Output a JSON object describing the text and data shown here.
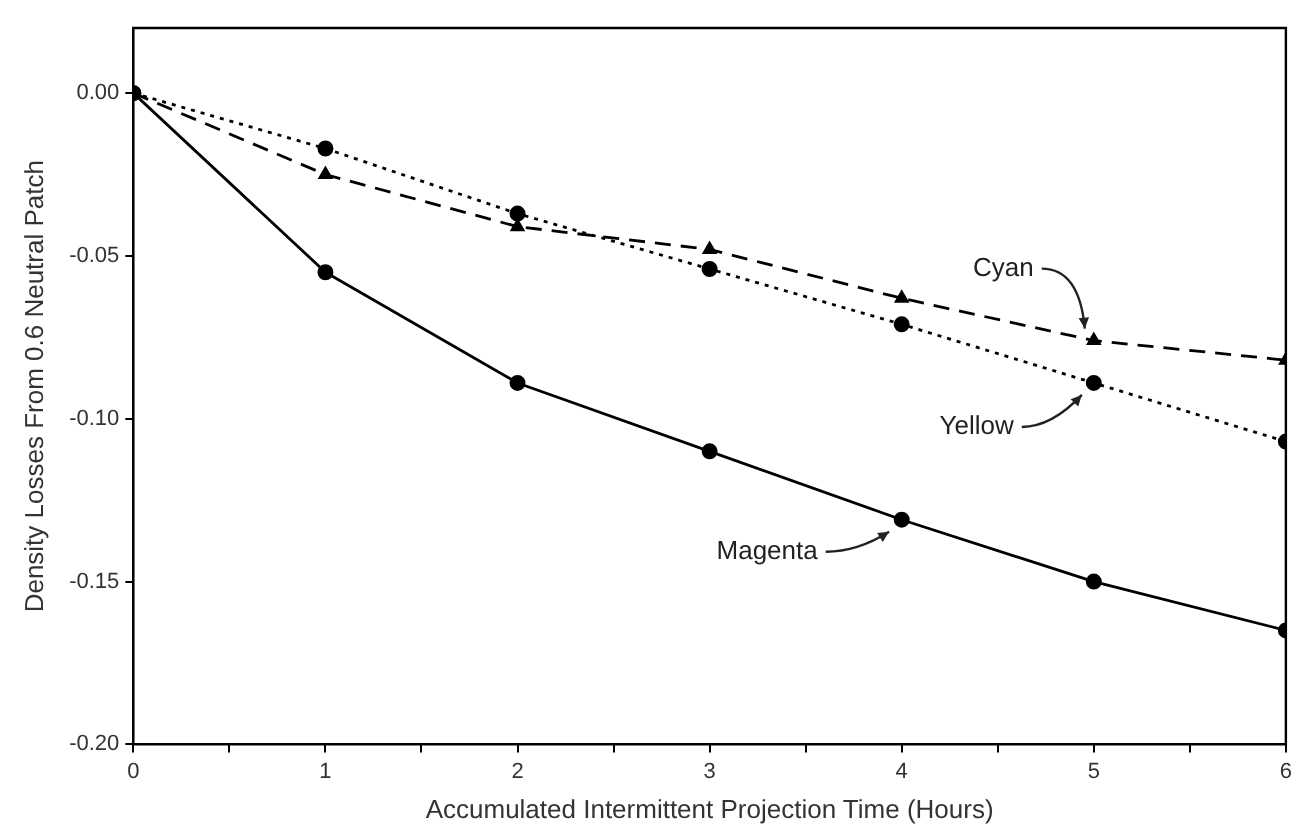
{
  "chart_data": {
    "type": "line",
    "xlabel": "Accumulated Intermittent Projection Time (Hours)",
    "ylabel": "Density Losses From 0.6 Neutral Patch",
    "x": [
      0,
      1,
      2,
      3,
      4,
      5,
      6
    ],
    "series": [
      {
        "name": "Cyan",
        "color": "#000000",
        "marker": "triangle",
        "line_style": "dashed",
        "values": [
          0,
          -0.025,
          -0.041,
          -0.048,
          -0.063,
          -0.076,
          -0.082
        ]
      },
      {
        "name": "Yellow",
        "color": "#000000",
        "marker": "circle",
        "line_style": "dotted",
        "values": [
          0,
          -0.017,
          -0.037,
          -0.054,
          -0.071,
          -0.089,
          -0.107
        ]
      },
      {
        "name": "Magenta",
        "color": "#000000",
        "marker": "circle",
        "line_style": "solid",
        "values": [
          0,
          -0.055,
          -0.089,
          -0.11,
          -0.131,
          -0.15,
          -0.165
        ]
      }
    ],
    "xlim": [
      0,
      6
    ],
    "xticks": [
      0,
      {
        "value": 0.5,
        "label": null
      },
      1,
      {
        "value": 1.5,
        "label": null
      },
      2,
      {
        "value": 2.5,
        "label": null
      },
      3,
      {
        "value": 3.5,
        "label": null
      },
      4,
      {
        "value": 4.5,
        "label": null
      },
      5,
      {
        "value": 5.5,
        "label": null
      },
      6
    ],
    "ylim": [
      -0.2,
      0.02
    ],
    "yticks": [
      {
        "value": -0.2,
        "label": "-0.20"
      },
      {
        "value": -0.15,
        "label": "-0.15"
      },
      {
        "value": -0.1,
        "label": "-0.10"
      },
      {
        "value": -0.05,
        "label": "-0.05"
      },
      {
        "value": 0,
        "label": "0.00"
      }
    ],
    "grid": false,
    "legend": false
  }
}
